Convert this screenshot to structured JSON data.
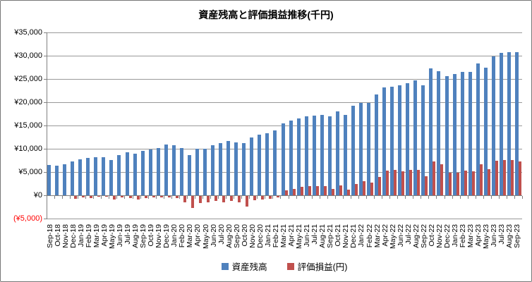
{
  "title": "資産残高と評価損益推移(千円)",
  "colors": {
    "asset_bar": "#4F81BD",
    "pnl_bar": "#C0504D",
    "gridline": "#999999",
    "axis_line": "#808080",
    "label_text": "#000000",
    "negative_label": "#FF0000",
    "background": "#FFFFFF"
  },
  "y_axis": {
    "tick_labels": [
      "¥35,000",
      "¥30,000",
      "¥25,000",
      "¥20,000",
      "¥15,000",
      "¥10,000",
      "¥5,000",
      "¥0",
      "(¥5,000)"
    ],
    "min": -5000,
    "max": 35000,
    "step": 5000
  },
  "legend": {
    "items": [
      {
        "label": "資産残高"
      },
      {
        "label": "評価損益(円)"
      }
    ]
  },
  "chart_data": {
    "type": "bar",
    "title": "資産残高と評価損益推移(千円)",
    "unit": "千円",
    "ylim": [
      -5000,
      35000
    ],
    "grid": true,
    "legend_position": "bottom",
    "categories": [
      "Sep-18",
      "Oct-18",
      "Nov-18",
      "Dec-18",
      "Jan-19",
      "Feb-19",
      "Mar-19",
      "Apr-19",
      "May-19",
      "Jun-19",
      "Jul-19",
      "Aug-19",
      "Sep-19",
      "Oct-19",
      "Nov-19",
      "Dec-19",
      "Jan-20",
      "Feb-20",
      "Mar-20",
      "Apr-20",
      "May-20",
      "Jun-20",
      "Jul-20",
      "Aug-20",
      "Sep-20",
      "Oct-20",
      "Nov-20",
      "Dec-20",
      "Jan-21",
      "Feb-21",
      "Mar-21",
      "Apr-21",
      "May-21",
      "Jun-21",
      "Jul-21",
      "Aug-21",
      "Sep-21",
      "Oct-21",
      "Nov-21",
      "Dec-21",
      "Jan-22",
      "Feb-22",
      "Mar-22",
      "Apr-22",
      "May-22",
      "Jun-22",
      "Jul-22",
      "Aug-22",
      "Sep-22",
      "Oct-22",
      "Nov-22",
      "Dec-22",
      "Jan-23",
      "Feb-23",
      "Mar-23",
      "Apr-23",
      "May-23",
      "Jun-23",
      "Jul-23",
      "Aug-23",
      "Sep-23"
    ],
    "series": [
      {
        "name": "資産残高",
        "color": "#4F81BD",
        "values": [
          6500,
          6400,
          6600,
          7300,
          7800,
          8100,
          8200,
          8200,
          7600,
          8600,
          9300,
          8900,
          9600,
          9900,
          10200,
          10900,
          10800,
          10100,
          8600,
          10000,
          10000,
          10800,
          11200,
          11600,
          11400,
          11200,
          12500,
          13000,
          13300,
          13900,
          15500,
          16100,
          16500,
          16900,
          17100,
          17300,
          17000,
          18000,
          17300,
          19200,
          19900,
          19900,
          21700,
          23200,
          23400,
          23700,
          24100,
          24700,
          23700,
          27200,
          26700,
          25600,
          26000,
          26500,
          26500,
          28300,
          27500,
          29800,
          30600,
          30800,
          30800
        ]
      },
      {
        "name": "評価損益(円)",
        "color": "#C0504D",
        "values": [
          0,
          0,
          0,
          -600,
          -300,
          -400,
          -200,
          -200,
          -800,
          -350,
          -450,
          -700,
          -450,
          -350,
          -350,
          -250,
          -450,
          -1300,
          -2500,
          -1500,
          -1400,
          -1100,
          -1300,
          -1100,
          -1300,
          -2200,
          -900,
          -800,
          -600,
          -350,
          1000,
          1400,
          1800,
          2000,
          1900,
          1900,
          1400,
          2100,
          1200,
          2500,
          3100,
          2800,
          4000,
          5300,
          5400,
          5200,
          5500,
          5400,
          4100,
          7300,
          6600,
          4900,
          4900,
          5300,
          5200,
          6600,
          5600,
          7400,
          7600,
          7600,
          7200
        ]
      }
    ]
  }
}
